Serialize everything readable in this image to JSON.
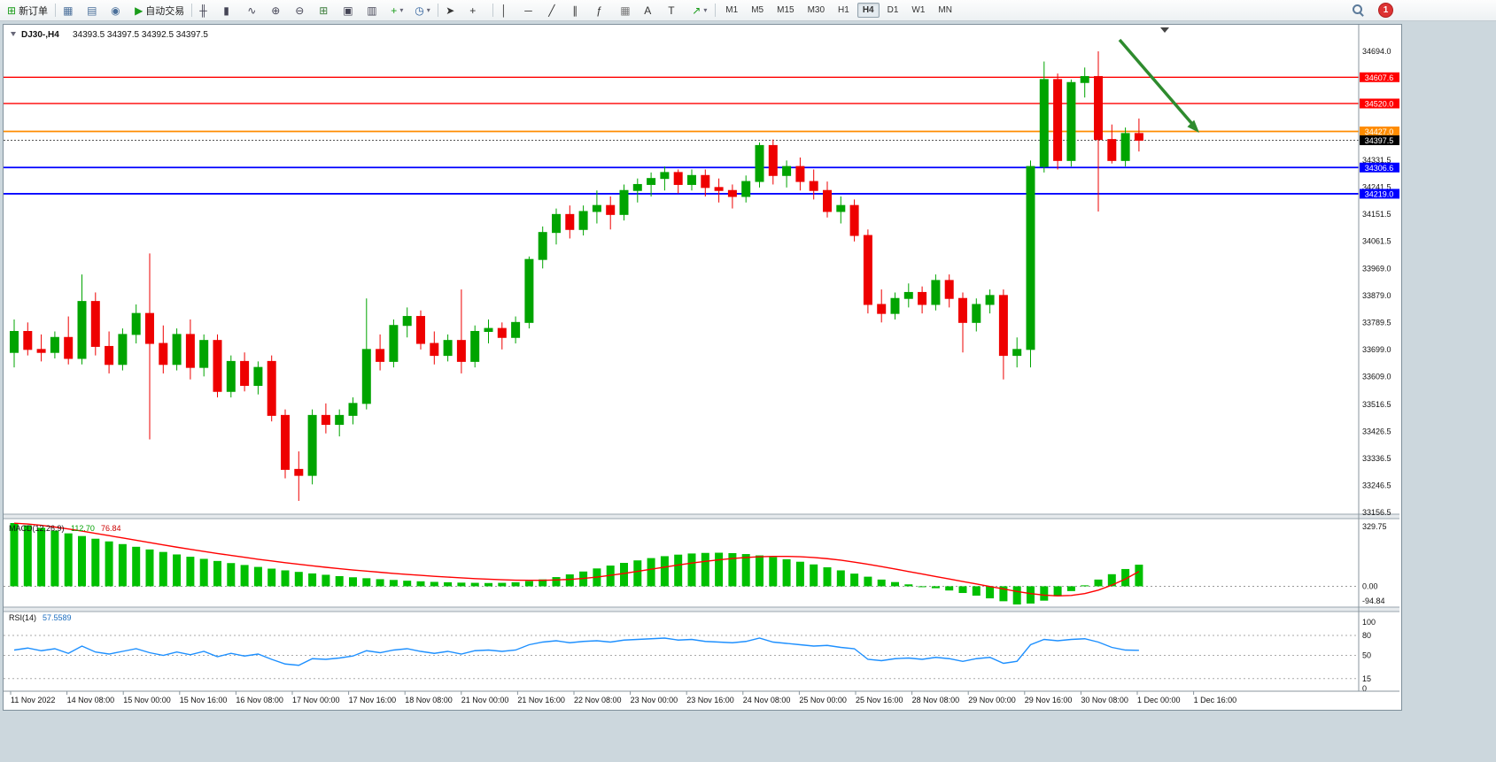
{
  "toolbar": {
    "items": [
      {
        "name": "new-order-button",
        "icon": "new-order-icon",
        "glyph": "⊞",
        "color": "#1a9c1a",
        "label": "新订单"
      },
      {
        "sep": true
      },
      {
        "name": "market-watch-button",
        "icon": "market-watch-icon",
        "glyph": "▦",
        "color": "#4a6f9a"
      },
      {
        "name": "data-window-button",
        "icon": "data-window-icon",
        "glyph": "▤",
        "color": "#4a6f9a"
      },
      {
        "name": "navigator-button",
        "icon": "navigator-icon",
        "glyph": "◉",
        "color": "#4a6f9a"
      },
      {
        "name": "auto-trading-button",
        "icon": "auto-trading-icon",
        "glyph": "▶",
        "color": "#1a9c1a",
        "label": "自动交易"
      },
      {
        "sep": true
      },
      {
        "name": "bar-chart-button",
        "icon": "bar-chart-icon",
        "glyph": "╫",
        "color": "#445"
      },
      {
        "name": "candlestick-chart-button",
        "icon": "candlestick-chart-icon",
        "glyph": "▮",
        "color": "#445"
      },
      {
        "name": "line-chart-button",
        "icon": "line-chart-icon",
        "glyph": "∿",
        "color": "#445"
      },
      {
        "name": "zoom-in-button",
        "icon": "zoom-in-icon",
        "glyph": "⊕",
        "color": "#445"
      },
      {
        "name": "zoom-out-button",
        "icon": "zoom-out-icon",
        "glyph": "⊖",
        "color": "#445"
      },
      {
        "name": "tile-windows-button",
        "icon": "tile-windows-icon",
        "glyph": "⊞",
        "color": "#3b7d3b"
      },
      {
        "name": "arrange-windows-button",
        "icon": "arrange-windows-icon",
        "glyph": "▣",
        "color": "#445"
      },
      {
        "name": "cascade-windows-button",
        "icon": "cascade-windows-icon",
        "glyph": "▥",
        "color": "#445"
      },
      {
        "name": "indicators-button",
        "icon": "indicators-icon",
        "glyph": "+",
        "color": "#1a9c1a",
        "dropdown": true
      },
      {
        "name": "timeframe-clock-button",
        "icon": "clock-icon",
        "glyph": "◷",
        "color": "#2a5d9a",
        "dropdown": true
      },
      {
        "sep": true
      },
      {
        "name": "cursor-button",
        "icon": "cursor-icon",
        "glyph": "➤",
        "color": "#333"
      },
      {
        "name": "crosshair-button",
        "icon": "crosshair-icon",
        "glyph": "+",
        "color": "#333"
      },
      {
        "sep": true
      },
      {
        "name": "vertical-line-button",
        "icon": "vertical-line-icon",
        "glyph": "│",
        "color": "#333"
      },
      {
        "name": "horizontal-line-button",
        "icon": "horizontal-line-icon",
        "glyph": "─",
        "color": "#333"
      },
      {
        "name": "trendline-button",
        "icon": "trendline-icon",
        "glyph": "╱",
        "color": "#333"
      },
      {
        "name": "channel-button",
        "icon": "channel-icon",
        "glyph": "∥",
        "color": "#333"
      },
      {
        "name": "fibonacci-button",
        "icon": "fibonacci-icon",
        "glyph": "ƒ",
        "color": "#333"
      },
      {
        "name": "grid-button",
        "icon": "grid-icon",
        "glyph": "▦",
        "color": "#777"
      },
      {
        "name": "text-button",
        "icon": "text-icon",
        "glyph": "A",
        "color": "#333"
      },
      {
        "name": "label-button",
        "icon": "label-icon",
        "glyph": "T",
        "color": "#333"
      },
      {
        "name": "arrows-button",
        "icon": "arrow-tools-icon",
        "glyph": "↗",
        "color": "#1a9c1a",
        "dropdown": true
      },
      {
        "sep": true
      }
    ],
    "timeframes": [
      "M1",
      "M5",
      "M15",
      "M30",
      "H1",
      "H4",
      "D1",
      "W1",
      "MN"
    ],
    "active_timeframe": "H4",
    "notification_badge": "1"
  },
  "chart": {
    "symbol": "DJ30-,H4",
    "ohlc_line": "34393.5 34397.5 34392.5 34397.5",
    "price_range": {
      "min": 33156.5,
      "max": 34694.0
    },
    "hlines": [
      {
        "price": 34607.6,
        "label": "34607.6",
        "color": "#FF0000"
      },
      {
        "price": 34520.0,
        "label": "34520.0",
        "color": "#FF0000"
      },
      {
        "price": 34427.0,
        "label": "34427.0",
        "color": "#FF8C00"
      },
      {
        "price": 34306.6,
        "label": "34306.6",
        "color": "#0000FF"
      },
      {
        "price": 34219.0,
        "label": "34219.0",
        "color": "#0000FF"
      }
    ],
    "current_price": {
      "price": 34397.5,
      "label": "34397.5",
      "color": "#000000"
    },
    "y_labels": [
      {
        "price": 34694.0,
        "label": "34694.0"
      },
      {
        "price": 34331.5,
        "label": "34331.5"
      },
      {
        "price": 34241.5,
        "label": "34241.5"
      },
      {
        "price": 34151.5,
        "label": "34151.5"
      },
      {
        "price": 34061.5,
        "label": "34061.5"
      },
      {
        "price": 33969.0,
        "label": "33969.0"
      },
      {
        "price": 33879.0,
        "label": "33879.0"
      },
      {
        "price": 33789.5,
        "label": "33789.5"
      },
      {
        "price": 33699.0,
        "label": "33699.0"
      },
      {
        "price": 33609.0,
        "label": "33609.0"
      },
      {
        "price": 33516.5,
        "label": "33516.5"
      },
      {
        "price": 33426.5,
        "label": "33426.5"
      },
      {
        "price": 33336.5,
        "label": "33336.5"
      },
      {
        "price": 33246.5,
        "label": "33246.5"
      },
      {
        "price": 33156.5,
        "label": "33156.5"
      }
    ],
    "arrow_annotation": {
      "color": "#2e8b2e"
    },
    "up_color": "#00A400",
    "down_color": "#EE0000"
  },
  "macd_panel": {
    "name": "MACD(12,26,9)",
    "main_value": "112.70",
    "signal_value": "76.84",
    "axis_labels": [
      "329.75",
      "0.00",
      "-94.84"
    ],
    "range": {
      "min": -94.84,
      "max": 329.75
    },
    "histogram_color": "#00C000",
    "signal_color": "#FF0000"
  },
  "rsi_panel": {
    "name": "RSI(14)",
    "value": "57.5589",
    "axis_labels": [
      "100",
      "80",
      "50",
      "15",
      "0"
    ],
    "levels": [
      80,
      50,
      15
    ],
    "range": {
      "min": 0,
      "max": 100
    },
    "line_color": "#1E90FF"
  },
  "chart_data": {
    "type": "candlestick",
    "title": "DJ30-,H4",
    "ylim": [
      33156.5,
      34694.0
    ],
    "x_labels": [
      "11 Nov 2022",
      "14 Nov 08:00",
      "15 Nov 00:00",
      "15 Nov 16:00",
      "16 Nov 08:00",
      "17 Nov 00:00",
      "17 Nov 16:00",
      "18 Nov 08:00",
      "21 Nov 00:00",
      "21 Nov 16:00",
      "22 Nov 08:00",
      "23 Nov 00:00",
      "23 Nov 16:00",
      "24 Nov 08:00",
      "25 Nov 00:00",
      "25 Nov 16:00",
      "28 Nov 08:00",
      "29 Nov 00:00",
      "29 Nov 16:00",
      "30 Nov 08:00",
      "1 Dec 00:00",
      "1 Dec 16:00"
    ],
    "candles_ohlc": [
      [
        33690,
        33800,
        33640,
        33760
      ],
      [
        33760,
        33790,
        33680,
        33700
      ],
      [
        33700,
        33750,
        33660,
        33690
      ],
      [
        33690,
        33760,
        33670,
        33740
      ],
      [
        33740,
        33810,
        33650,
        33670
      ],
      [
        33670,
        33950,
        33650,
        33860
      ],
      [
        33860,
        33890,
        33680,
        33710
      ],
      [
        33710,
        33760,
        33620,
        33650
      ],
      [
        33650,
        33770,
        33630,
        33750
      ],
      [
        33750,
        33850,
        33720,
        33820
      ],
      [
        33820,
        34020,
        33400,
        33720
      ],
      [
        33720,
        33780,
        33620,
        33650
      ],
      [
        33650,
        33770,
        33630,
        33750
      ],
      [
        33750,
        33800,
        33600,
        33640
      ],
      [
        33640,
        33750,
        33610,
        33730
      ],
      [
        33730,
        33750,
        33540,
        33560
      ],
      [
        33560,
        33680,
        33540,
        33660
      ],
      [
        33660,
        33690,
        33560,
        33580
      ],
      [
        33580,
        33660,
        33550,
        33640
      ],
      [
        33660,
        33680,
        33460,
        33480
      ],
      [
        33480,
        33500,
        33270,
        33300
      ],
      [
        33300,
        33360,
        33195,
        33280
      ],
      [
        33280,
        33500,
        33250,
        33480
      ],
      [
        33480,
        33520,
        33420,
        33450
      ],
      [
        33450,
        33500,
        33410,
        33480
      ],
      [
        33480,
        33540,
        33450,
        33520
      ],
      [
        33520,
        33870,
        33500,
        33700
      ],
      [
        33700,
        33750,
        33630,
        33660
      ],
      [
        33660,
        33800,
        33640,
        33780
      ],
      [
        33780,
        33840,
        33740,
        33810
      ],
      [
        33810,
        33830,
        33700,
        33720
      ],
      [
        33720,
        33760,
        33650,
        33680
      ],
      [
        33680,
        33750,
        33660,
        33730
      ],
      [
        33730,
        33900,
        33620,
        33660
      ],
      [
        33660,
        33780,
        33640,
        33760
      ],
      [
        33760,
        33800,
        33720,
        33770
      ],
      [
        33770,
        33790,
        33700,
        33740
      ],
      [
        33740,
        33810,
        33720,
        33790
      ],
      [
        33790,
        34010,
        33770,
        34000
      ],
      [
        34000,
        34110,
        33970,
        34090
      ],
      [
        34090,
        34170,
        34050,
        34150
      ],
      [
        34150,
        34180,
        34070,
        34100
      ],
      [
        34100,
        34180,
        34080,
        34160
      ],
      [
        34160,
        34230,
        34120,
        34180
      ],
      [
        34180,
        34210,
        34100,
        34150
      ],
      [
        34150,
        34250,
        34130,
        34230
      ],
      [
        34230,
        34270,
        34190,
        34250
      ],
      [
        34250,
        34290,
        34210,
        34270
      ],
      [
        34270,
        34310,
        34230,
        34290
      ],
      [
        34290,
        34300,
        34220,
        34250
      ],
      [
        34250,
        34300,
        34230,
        34280
      ],
      [
        34280,
        34300,
        34210,
        34240
      ],
      [
        34240,
        34270,
        34190,
        34230
      ],
      [
        34230,
        34250,
        34170,
        34210
      ],
      [
        34210,
        34280,
        34190,
        34260
      ],
      [
        34260,
        34390,
        34240,
        34380
      ],
      [
        34380,
        34400,
        34250,
        34280
      ],
      [
        34280,
        34330,
        34240,
        34310
      ],
      [
        34310,
        34340,
        34230,
        34260
      ],
      [
        34260,
        34300,
        34200,
        34230
      ],
      [
        34230,
        34260,
        34140,
        34160
      ],
      [
        34160,
        34210,
        34120,
        34180
      ],
      [
        34180,
        34200,
        34060,
        34080
      ],
      [
        34080,
        34100,
        33820,
        33850
      ],
      [
        33850,
        33900,
        33790,
        33820
      ],
      [
        33820,
        33890,
        33800,
        33870
      ],
      [
        33870,
        33920,
        33840,
        33890
      ],
      [
        33890,
        33910,
        33820,
        33850
      ],
      [
        33850,
        33950,
        33830,
        33930
      ],
      [
        33930,
        33950,
        33840,
        33870
      ],
      [
        33870,
        33890,
        33690,
        33790
      ],
      [
        33790,
        33870,
        33760,
        33850
      ],
      [
        33850,
        33900,
        33820,
        33880
      ],
      [
        33880,
        33900,
        33600,
        33680
      ],
      [
        33680,
        33740,
        33640,
        33700
      ],
      [
        33700,
        34330,
        33640,
        34310
      ],
      [
        34310,
        34660,
        34290,
        34600
      ],
      [
        34600,
        34620,
        34300,
        34330
      ],
      [
        34330,
        34600,
        34310,
        34590
      ],
      [
        34590,
        34640,
        34540,
        34610
      ],
      [
        34610,
        34694,
        34160,
        34400
      ],
      [
        34400,
        34450,
        34320,
        34330
      ],
      [
        34330,
        34440,
        34310,
        34420
      ],
      [
        34420,
        34470,
        34360,
        34397.5
      ]
    ],
    "indicators": {
      "macd": {
        "histogram": [
          329.75,
          318,
          305,
          290,
          276,
          262,
          248,
          234,
          220,
          206,
          192,
          179,
          166,
          154,
          143,
          132,
          121,
          111,
          101,
          92,
          83,
          75,
          67,
          60,
          53,
          47,
          42,
          37,
          33,
          29,
          26,
          23,
          21,
          19,
          18,
          17,
          18,
          21,
          27,
          36,
          48,
          62,
          77,
          93,
          108,
          122,
          135,
          147,
          157,
          165,
          171,
          174,
          175,
          173,
          168,
          161,
          152,
          141,
          128,
          114,
          99,
          83,
          66,
          50,
          35,
          22,
          10,
          0,
          -10,
          -22,
          -35,
          -49,
          -63,
          -78,
          -94.84,
          -90,
          -75,
          -52,
          -25,
          5,
          35,
          63,
          90,
          112.7
        ],
        "signal": [
          329,
          325,
          318,
          309,
          299,
          288,
          276,
          264,
          252,
          240,
          228,
          216,
          204,
          193,
          182,
          171,
          161,
          151,
          141,
          132,
          123,
          115,
          107,
          99,
          92,
          85,
          79,
          73,
          67,
          62,
          57,
          52,
          48,
          44,
          40,
          37,
          34,
          32,
          31,
          31,
          33,
          36,
          41,
          48,
          57,
          67,
          78,
          89,
          100,
          111,
          121,
          130,
          138,
          145,
          150,
          154,
          156,
          156,
          154,
          150,
          144,
          136,
          126,
          115,
          103,
          90,
          77,
          64,
          51,
          38,
          25,
          12,
          -1,
          -14,
          -27,
          -38,
          -46,
          -50,
          -48,
          -38,
          -20,
          6,
          38,
          76.84
        ]
      },
      "rsi": {
        "values": [
          58,
          61,
          57,
          60,
          53,
          64,
          55,
          52,
          56,
          60,
          54,
          50,
          55,
          51,
          56,
          48,
          53,
          49,
          52,
          44,
          37,
          35,
          45,
          44,
          46,
          49,
          57,
          54,
          58,
          60,
          56,
          53,
          56,
          52,
          57,
          58,
          56,
          58,
          66,
          70,
          72,
          69,
          71,
          72,
          70,
          73,
          74,
          75,
          76,
          73,
          74,
          71,
          70,
          69,
          71,
          76,
          70,
          68,
          66,
          64,
          65,
          62,
          60,
          44,
          42,
          45,
          46,
          44,
          47,
          45,
          41,
          45,
          47,
          38,
          41,
          66,
          74,
          72,
          74,
          75,
          70,
          62,
          58,
          57.56
        ]
      }
    }
  }
}
